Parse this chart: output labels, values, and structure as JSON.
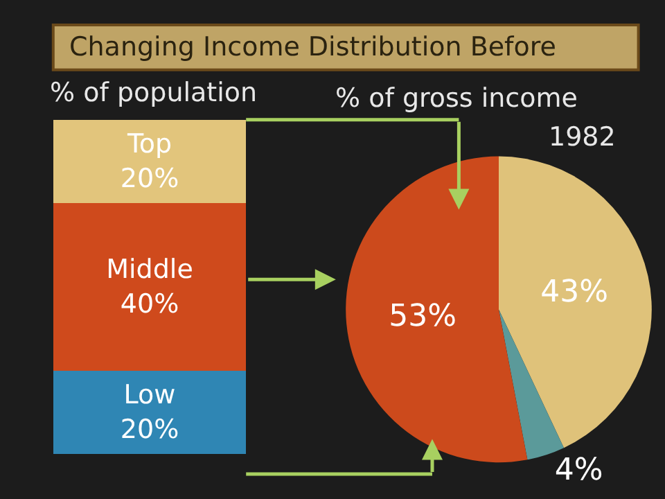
{
  "chart_data": [
    {
      "type": "bar",
      "title": "Changing Income Distribution Before",
      "subtitle": "% of population",
      "categories": [
        null
      ],
      "stacked": true,
      "ylim": [
        0,
        80
      ],
      "tick_labels": false,
      "legend": false,
      "series": [
        {
          "name": "Low",
          "color": "#2f86b4",
          "values": [
            20
          ],
          "value_labels": [
            "20%"
          ]
        },
        {
          "name": "Middle",
          "color": "#cf4a1c",
          "values": [
            40
          ],
          "value_labels": [
            "40%"
          ]
        },
        {
          "name": "Top",
          "color": "#e2c57c",
          "values": [
            20
          ],
          "value_labels": [
            "20%"
          ]
        }
      ]
    },
    {
      "type": "pie",
      "title": "% of gross income",
      "subtitle": "1982",
      "categories": [
        null,
        null,
        null
      ],
      "values": [
        43,
        4,
        53
      ],
      "colors": [
        "#dfc27a",
        "#5b9a9a",
        "#cc4a1c"
      ],
      "value_labels": [
        "43%",
        "4%",
        "53%"
      ],
      "legend": false
    }
  ]
}
